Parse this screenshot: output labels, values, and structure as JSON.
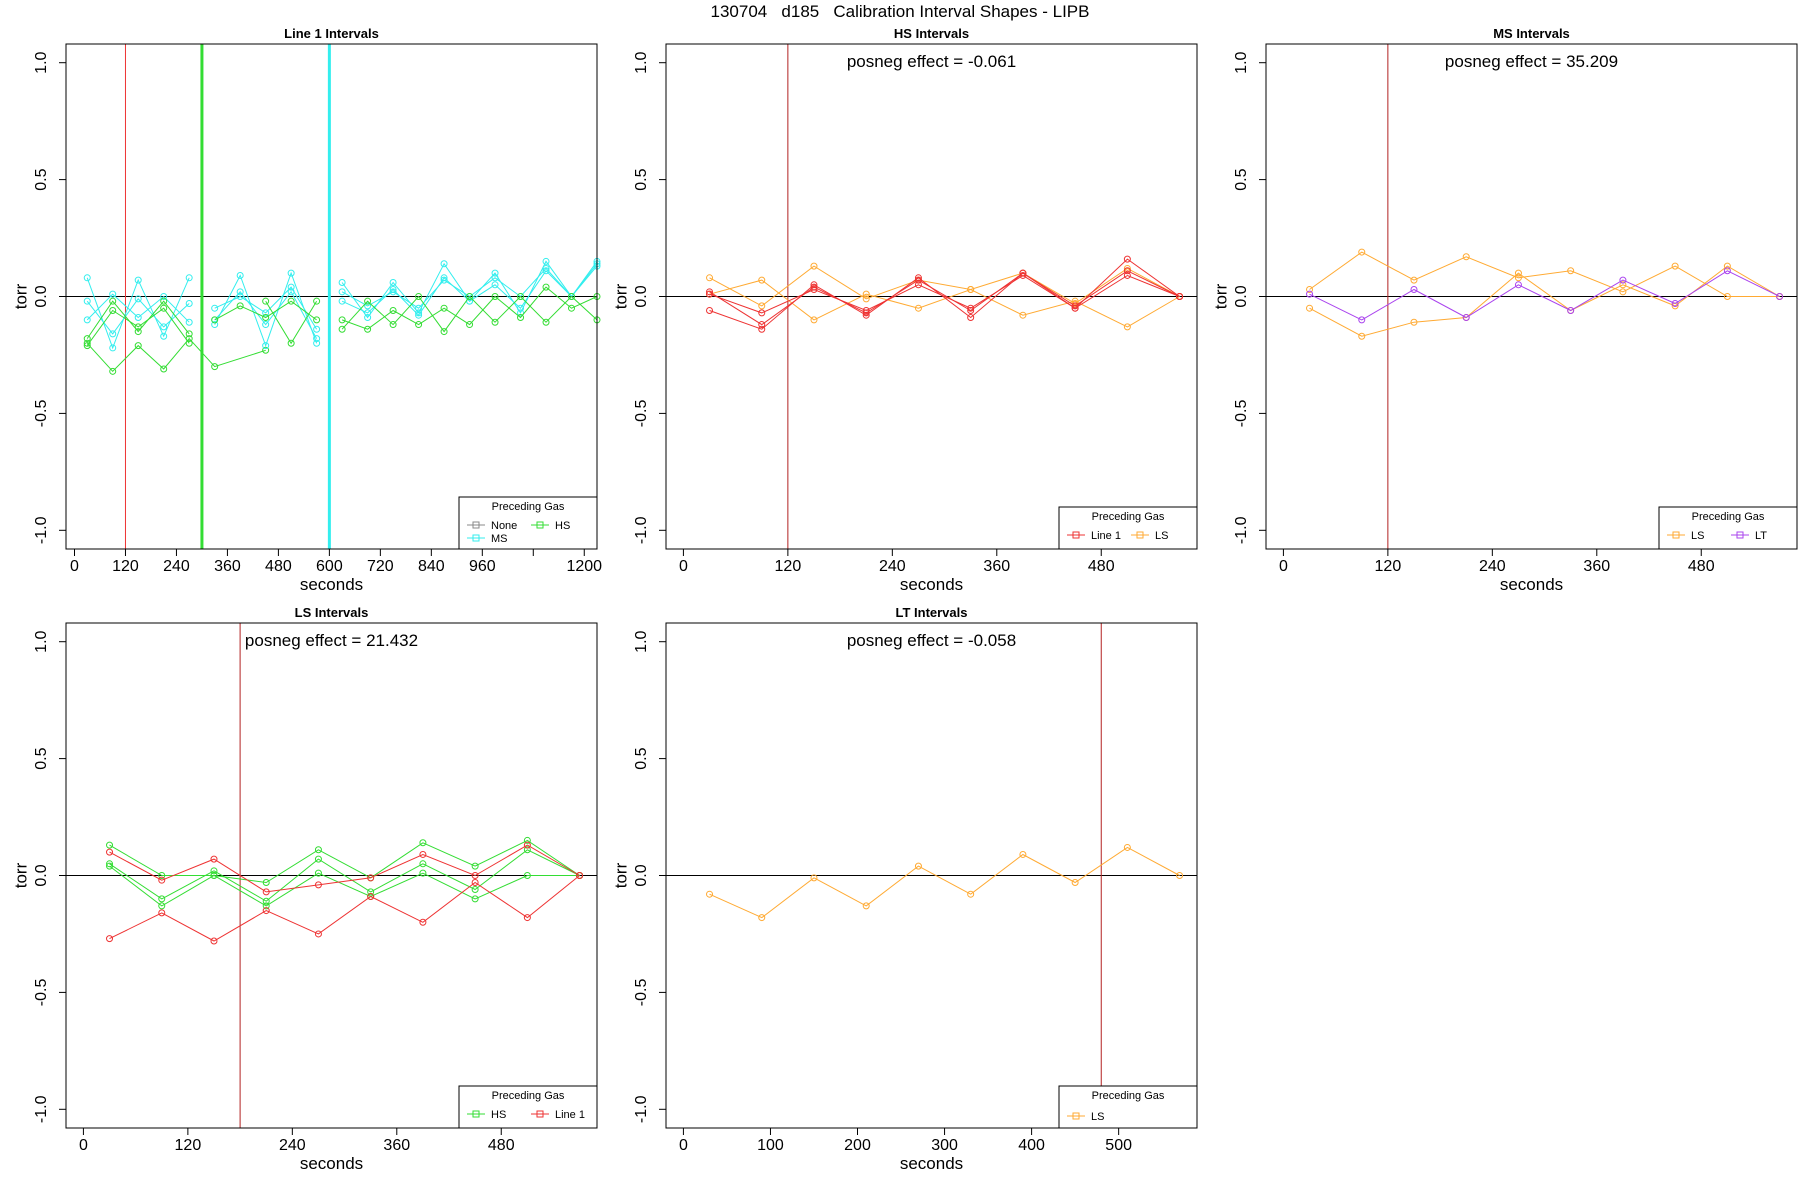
{
  "title": "130704   d185   Calibration Interval Shapes - LIPB",
  "colors": {
    "None": "#888888",
    "HS": "#33dd33",
    "MS": "#33eeee",
    "Line 1": "#ee3333",
    "LS": "#ffaa33",
    "LT": "#aa44ee",
    "vline": "#b22222"
  },
  "chart_data": [
    {
      "type": "line",
      "title": "Line 1 Intervals",
      "xlabel": "seconds",
      "ylabel": "torr",
      "xlim": [
        -20,
        1230
      ],
      "ylim": [
        -1.08,
        1.08
      ],
      "xticks": [
        0,
        120,
        240,
        360,
        480,
        600,
        720,
        840,
        960,
        1200
      ],
      "extra_xticks": [
        1080
      ],
      "yticks": [
        -1.0,
        -0.5,
        0.0,
        0.5,
        1.0
      ],
      "ytick_labels": [
        "-1.0",
        "-0.5",
        "0.0",
        "0.5",
        "1.0"
      ],
      "hline": 0,
      "vlines": [
        {
          "x": 120,
          "color": "Line 1",
          "width": 1
        },
        {
          "x": 300,
          "color": "HS",
          "width": 3
        },
        {
          "x": 600,
          "color": "MS",
          "width": 3
        }
      ],
      "annotation": "",
      "legend": {
        "title": "Preceding Gas",
        "entries": [
          {
            "label": "None",
            "color": "None"
          },
          {
            "label": "HS",
            "color": "HS"
          },
          {
            "label": "MS",
            "color": "MS"
          }
        ]
      },
      "series": [
        {
          "group": "MS",
          "x": [
            30,
            90,
            150,
            210,
            270
          ],
          "y": [
            0.08,
            -0.22,
            0.07,
            -0.17,
            0.08
          ]
        },
        {
          "group": "MS",
          "x": [
            30,
            90,
            150,
            210,
            270
          ],
          "y": [
            -0.02,
            -0.16,
            -0.01,
            -0.13,
            -0.03
          ]
        },
        {
          "group": "MS",
          "x": [
            30,
            90,
            150,
            210,
            270
          ],
          "y": [
            -0.1,
            0.01,
            -0.09,
            0.0,
            -0.11
          ]
        },
        {
          "group": "HS",
          "x": [
            30,
            90,
            150,
            210,
            270
          ],
          "y": [
            -0.18,
            -0.02,
            -0.15,
            -0.02,
            -0.16
          ]
        },
        {
          "group": "HS",
          "x": [
            30,
            90,
            150,
            210,
            270,
            330,
            450
          ],
          "y": [
            -0.2,
            -0.32,
            -0.21,
            -0.31,
            -0.18,
            -0.3,
            -0.23
          ]
        },
        {
          "group": "HS",
          "x": [
            30,
            90,
            150,
            210,
            270
          ],
          "y": [
            -0.21,
            -0.06,
            -0.13,
            -0.05,
            -0.2
          ]
        },
        {
          "group": "MS",
          "x": [
            330,
            390,
            450,
            510,
            570
          ],
          "y": [
            -0.12,
            0.09,
            -0.21,
            0.1,
            -0.2
          ]
        },
        {
          "group": "MS",
          "x": [
            330,
            390,
            450,
            510,
            570
          ],
          "y": [
            -0.05,
            0.0,
            -0.07,
            0.04,
            -0.14
          ]
        },
        {
          "group": "MS",
          "x": [
            330,
            390,
            450,
            510,
            570
          ],
          "y": [
            -0.1,
            0.02,
            -0.12,
            0.02,
            -0.18
          ]
        },
        {
          "group": "HS",
          "x": [
            330,
            390,
            450,
            510,
            570
          ],
          "y": [
            -0.1,
            -0.04,
            -0.09,
            -0.02,
            -0.1
          ]
        },
        {
          "group": "HS",
          "x": [
            450,
            510,
            570
          ],
          "y": [
            -0.02,
            -0.2,
            -0.02
          ]
        },
        {
          "group": "MS",
          "x": [
            630,
            690,
            750,
            810,
            870,
            930,
            990,
            1050,
            1110,
            1170,
            1230
          ],
          "y": [
            0.06,
            -0.09,
            0.06,
            -0.07,
            0.14,
            -0.02,
            0.1,
            -0.07,
            0.15,
            0.0,
            0.15
          ]
        },
        {
          "group": "MS",
          "x": [
            630,
            690,
            750,
            810,
            870,
            930,
            990,
            1050,
            1110,
            1170,
            1230
          ],
          "y": [
            0.02,
            -0.04,
            0.02,
            -0.05,
            0.07,
            0.0,
            0.08,
            0.0,
            0.12,
            0.0,
            0.14
          ]
        },
        {
          "group": "MS",
          "x": [
            630,
            690,
            750,
            810,
            870,
            930,
            990,
            1050,
            1110,
            1170,
            1230
          ],
          "y": [
            -0.02,
            -0.07,
            0.03,
            -0.08,
            0.08,
            -0.02,
            0.05,
            -0.05,
            0.11,
            0.0,
            0.13
          ]
        },
        {
          "group": "HS",
          "x": [
            630,
            690,
            750,
            810,
            870,
            930,
            990,
            1050,
            1110,
            1170,
            1230
          ],
          "y": [
            -0.14,
            -0.02,
            -0.12,
            0.0,
            -0.15,
            0.0,
            -0.11,
            0.0,
            -0.11,
            0.0,
            -0.1
          ]
        },
        {
          "group": "HS",
          "x": [
            630,
            690,
            750,
            810,
            870,
            930,
            990,
            1050,
            1110,
            1170,
            1230
          ],
          "y": [
            -0.1,
            -0.14,
            -0.06,
            -0.12,
            -0.05,
            -0.12,
            0.0,
            -0.09,
            0.04,
            -0.05,
            0.0
          ]
        }
      ]
    },
    {
      "type": "line",
      "title": "HS Intervals",
      "xlabel": "seconds",
      "ylabel": "torr",
      "xlim": [
        -20,
        590
      ],
      "ylim": [
        -1.08,
        1.08
      ],
      "xticks": [
        0,
        120,
        240,
        360,
        480
      ],
      "extra_xticks": [],
      "yticks": [
        -1.0,
        -0.5,
        0.0,
        0.5,
        1.0
      ],
      "ytick_labels": [
        "-1.0",
        "-0.5",
        "0.0",
        "0.5",
        "1.0"
      ],
      "hline": 0,
      "vlines": [
        {
          "x": 120,
          "color": "vline",
          "width": 1
        }
      ],
      "annotation": "posneg effect = -0.061",
      "legend": {
        "title": "Preceding Gas",
        "entries": [
          {
            "label": "Line 1",
            "color": "Line 1"
          },
          {
            "label": "LS",
            "color": "LS"
          }
        ]
      },
      "series": [
        {
          "group": "LS",
          "x": [
            30,
            90,
            150,
            210,
            270,
            330,
            390,
            450,
            510,
            570
          ],
          "y": [
            0.08,
            -0.04,
            0.13,
            -0.01,
            0.07,
            0.03,
            0.1,
            -0.03,
            0.12,
            0.0
          ]
        },
        {
          "group": "LS",
          "x": [
            30,
            90,
            150,
            210,
            270,
            330,
            390,
            450,
            510,
            570
          ],
          "y": [
            0.01,
            0.07,
            -0.1,
            0.01,
            -0.05,
            0.03,
            -0.08,
            -0.02,
            -0.13,
            0.0
          ]
        },
        {
          "group": "Line 1",
          "x": [
            30,
            90,
            150,
            210,
            270,
            330,
            390,
            450,
            510,
            570
          ],
          "y": [
            -0.06,
            -0.14,
            0.05,
            -0.08,
            0.08,
            -0.09,
            0.1,
            -0.05,
            0.16,
            0.0
          ]
        },
        {
          "group": "Line 1",
          "x": [
            30,
            90,
            150,
            210,
            270,
            330,
            390,
            450,
            510,
            570
          ],
          "y": [
            0.02,
            -0.12,
            0.04,
            -0.07,
            0.07,
            -0.06,
            0.1,
            -0.04,
            0.11,
            0.0
          ]
        },
        {
          "group": "Line 1",
          "x": [
            30,
            90,
            150,
            210,
            270,
            330,
            390,
            450,
            510,
            570
          ],
          "y": [
            0.01,
            -0.07,
            0.03,
            -0.06,
            0.05,
            -0.05,
            0.09,
            -0.05,
            0.09,
            0.0
          ]
        }
      ]
    },
    {
      "type": "line",
      "title": "MS Intervals",
      "xlabel": "seconds",
      "ylabel": "torr",
      "xlim": [
        -20,
        590
      ],
      "ylim": [
        -1.08,
        1.08
      ],
      "xticks": [
        0,
        120,
        240,
        360,
        480
      ],
      "extra_xticks": [],
      "yticks": [
        -1.0,
        -0.5,
        0.0,
        0.5,
        1.0
      ],
      "ytick_labels": [
        "-1.0",
        "-0.5",
        "0.0",
        "0.5",
        "1.0"
      ],
      "hline": 0,
      "vlines": [
        {
          "x": 120,
          "color": "vline",
          "width": 1
        }
      ],
      "annotation": "posneg effect = 35.209",
      "legend": {
        "title": "Preceding Gas",
        "entries": [
          {
            "label": "LS",
            "color": "LS"
          },
          {
            "label": "LT",
            "color": "LT"
          }
        ]
      },
      "series": [
        {
          "group": "LS",
          "x": [
            30,
            90,
            150,
            210,
            270,
            330,
            390,
            450,
            510,
            570
          ],
          "y": [
            0.03,
            0.19,
            0.07,
            0.17,
            0.08,
            0.11,
            0.02,
            0.13,
            0.0,
            0.0
          ]
        },
        {
          "group": "LS",
          "x": [
            30,
            90,
            150,
            210,
            270,
            330,
            390,
            450,
            510,
            570
          ],
          "y": [
            -0.05,
            -0.17,
            -0.11,
            -0.09,
            0.1,
            -0.06,
            0.05,
            -0.04,
            0.13,
            0.0
          ]
        },
        {
          "group": "LT",
          "x": [
            30,
            90,
            150,
            210,
            270,
            330,
            390,
            450,
            510,
            570
          ],
          "y": [
            0.01,
            -0.1,
            0.03,
            -0.09,
            0.05,
            -0.06,
            0.07,
            -0.03,
            0.11,
            0.0
          ]
        }
      ]
    },
    {
      "type": "line",
      "title": "LS Intervals",
      "xlabel": "seconds",
      "ylabel": "torr",
      "xlim": [
        -20,
        590
      ],
      "ylim": [
        -1.08,
        1.08
      ],
      "xticks": [
        0,
        120,
        240,
        360,
        480
      ],
      "extra_xticks": [],
      "yticks": [
        -1.0,
        -0.5,
        0.0,
        0.5,
        1.0
      ],
      "ytick_labels": [
        "-1.0",
        "-0.5",
        "0.0",
        "0.5",
        "1.0"
      ],
      "hline": 0,
      "vlines": [
        {
          "x": 180,
          "color": "vline",
          "width": 1
        }
      ],
      "annotation": "posneg effect = 21.432",
      "legend": {
        "title": "Preceding Gas",
        "entries": [
          {
            "label": "HS",
            "color": "HS"
          },
          {
            "label": "Line 1",
            "color": "Line 1"
          }
        ]
      },
      "series": [
        {
          "group": "HS",
          "x": [
            30,
            90,
            150,
            210,
            270,
            330,
            390,
            450,
            510,
            570
          ],
          "y": [
            0.13,
            0.0,
            0.0,
            -0.03,
            0.11,
            -0.01,
            0.14,
            0.04,
            0.15,
            0.0
          ]
        },
        {
          "group": "HS",
          "x": [
            30,
            90,
            150,
            210,
            270,
            330,
            390,
            450,
            510,
            570
          ],
          "y": [
            0.05,
            -0.1,
            0.02,
            -0.11,
            0.07,
            -0.07,
            0.05,
            -0.06,
            0.11,
            0.0
          ]
        },
        {
          "group": "HS",
          "x": [
            30,
            90,
            150,
            210,
            270,
            330,
            390,
            450,
            510,
            570
          ],
          "y": [
            0.04,
            -0.13,
            0.0,
            -0.13,
            0.01,
            -0.09,
            0.01,
            -0.1,
            0.0,
            0.0
          ]
        },
        {
          "group": "Line 1",
          "x": [
            30,
            90,
            150,
            210,
            270,
            330,
            390,
            450,
            510,
            570
          ],
          "y": [
            0.1,
            -0.02,
            0.07,
            -0.07,
            -0.04,
            -0.01,
            0.09,
            0.0,
            0.13,
            0.0
          ]
        },
        {
          "group": "Line 1",
          "x": [
            30,
            90,
            150,
            210,
            270,
            330,
            390,
            450,
            510,
            570
          ],
          "y": [
            -0.27,
            -0.16,
            -0.28,
            -0.15,
            -0.25,
            -0.09,
            -0.2,
            -0.03,
            -0.18,
            0.0
          ]
        }
      ]
    },
    {
      "type": "line",
      "title": "LT Intervals",
      "xlabel": "seconds",
      "ylabel": "torr",
      "xlim": [
        -20,
        590
      ],
      "ylim": [
        -1.08,
        1.08
      ],
      "xticks": [
        0,
        100,
        200,
        300,
        400,
        500
      ],
      "extra_xticks": [],
      "yticks": [
        -1.0,
        -0.5,
        0.0,
        0.5,
        1.0
      ],
      "ytick_labels": [
        "-1.0",
        "-0.5",
        "0.0",
        "0.5",
        "1.0"
      ],
      "hline": 0,
      "vlines": [
        {
          "x": 480,
          "color": "vline",
          "width": 1
        }
      ],
      "annotation": "posneg effect = -0.058",
      "legend": {
        "title": "Preceding Gas",
        "entries": [
          {
            "label": "LS",
            "color": "LS"
          }
        ]
      },
      "series": [
        {
          "group": "LS",
          "x": [
            30,
            90,
            150,
            210,
            270,
            330,
            390,
            450,
            510,
            570
          ],
          "y": [
            -0.08,
            -0.18,
            -0.01,
            -0.13,
            0.04,
            -0.08,
            0.09,
            -0.03,
            0.12,
            0.0
          ]
        }
      ]
    }
  ]
}
